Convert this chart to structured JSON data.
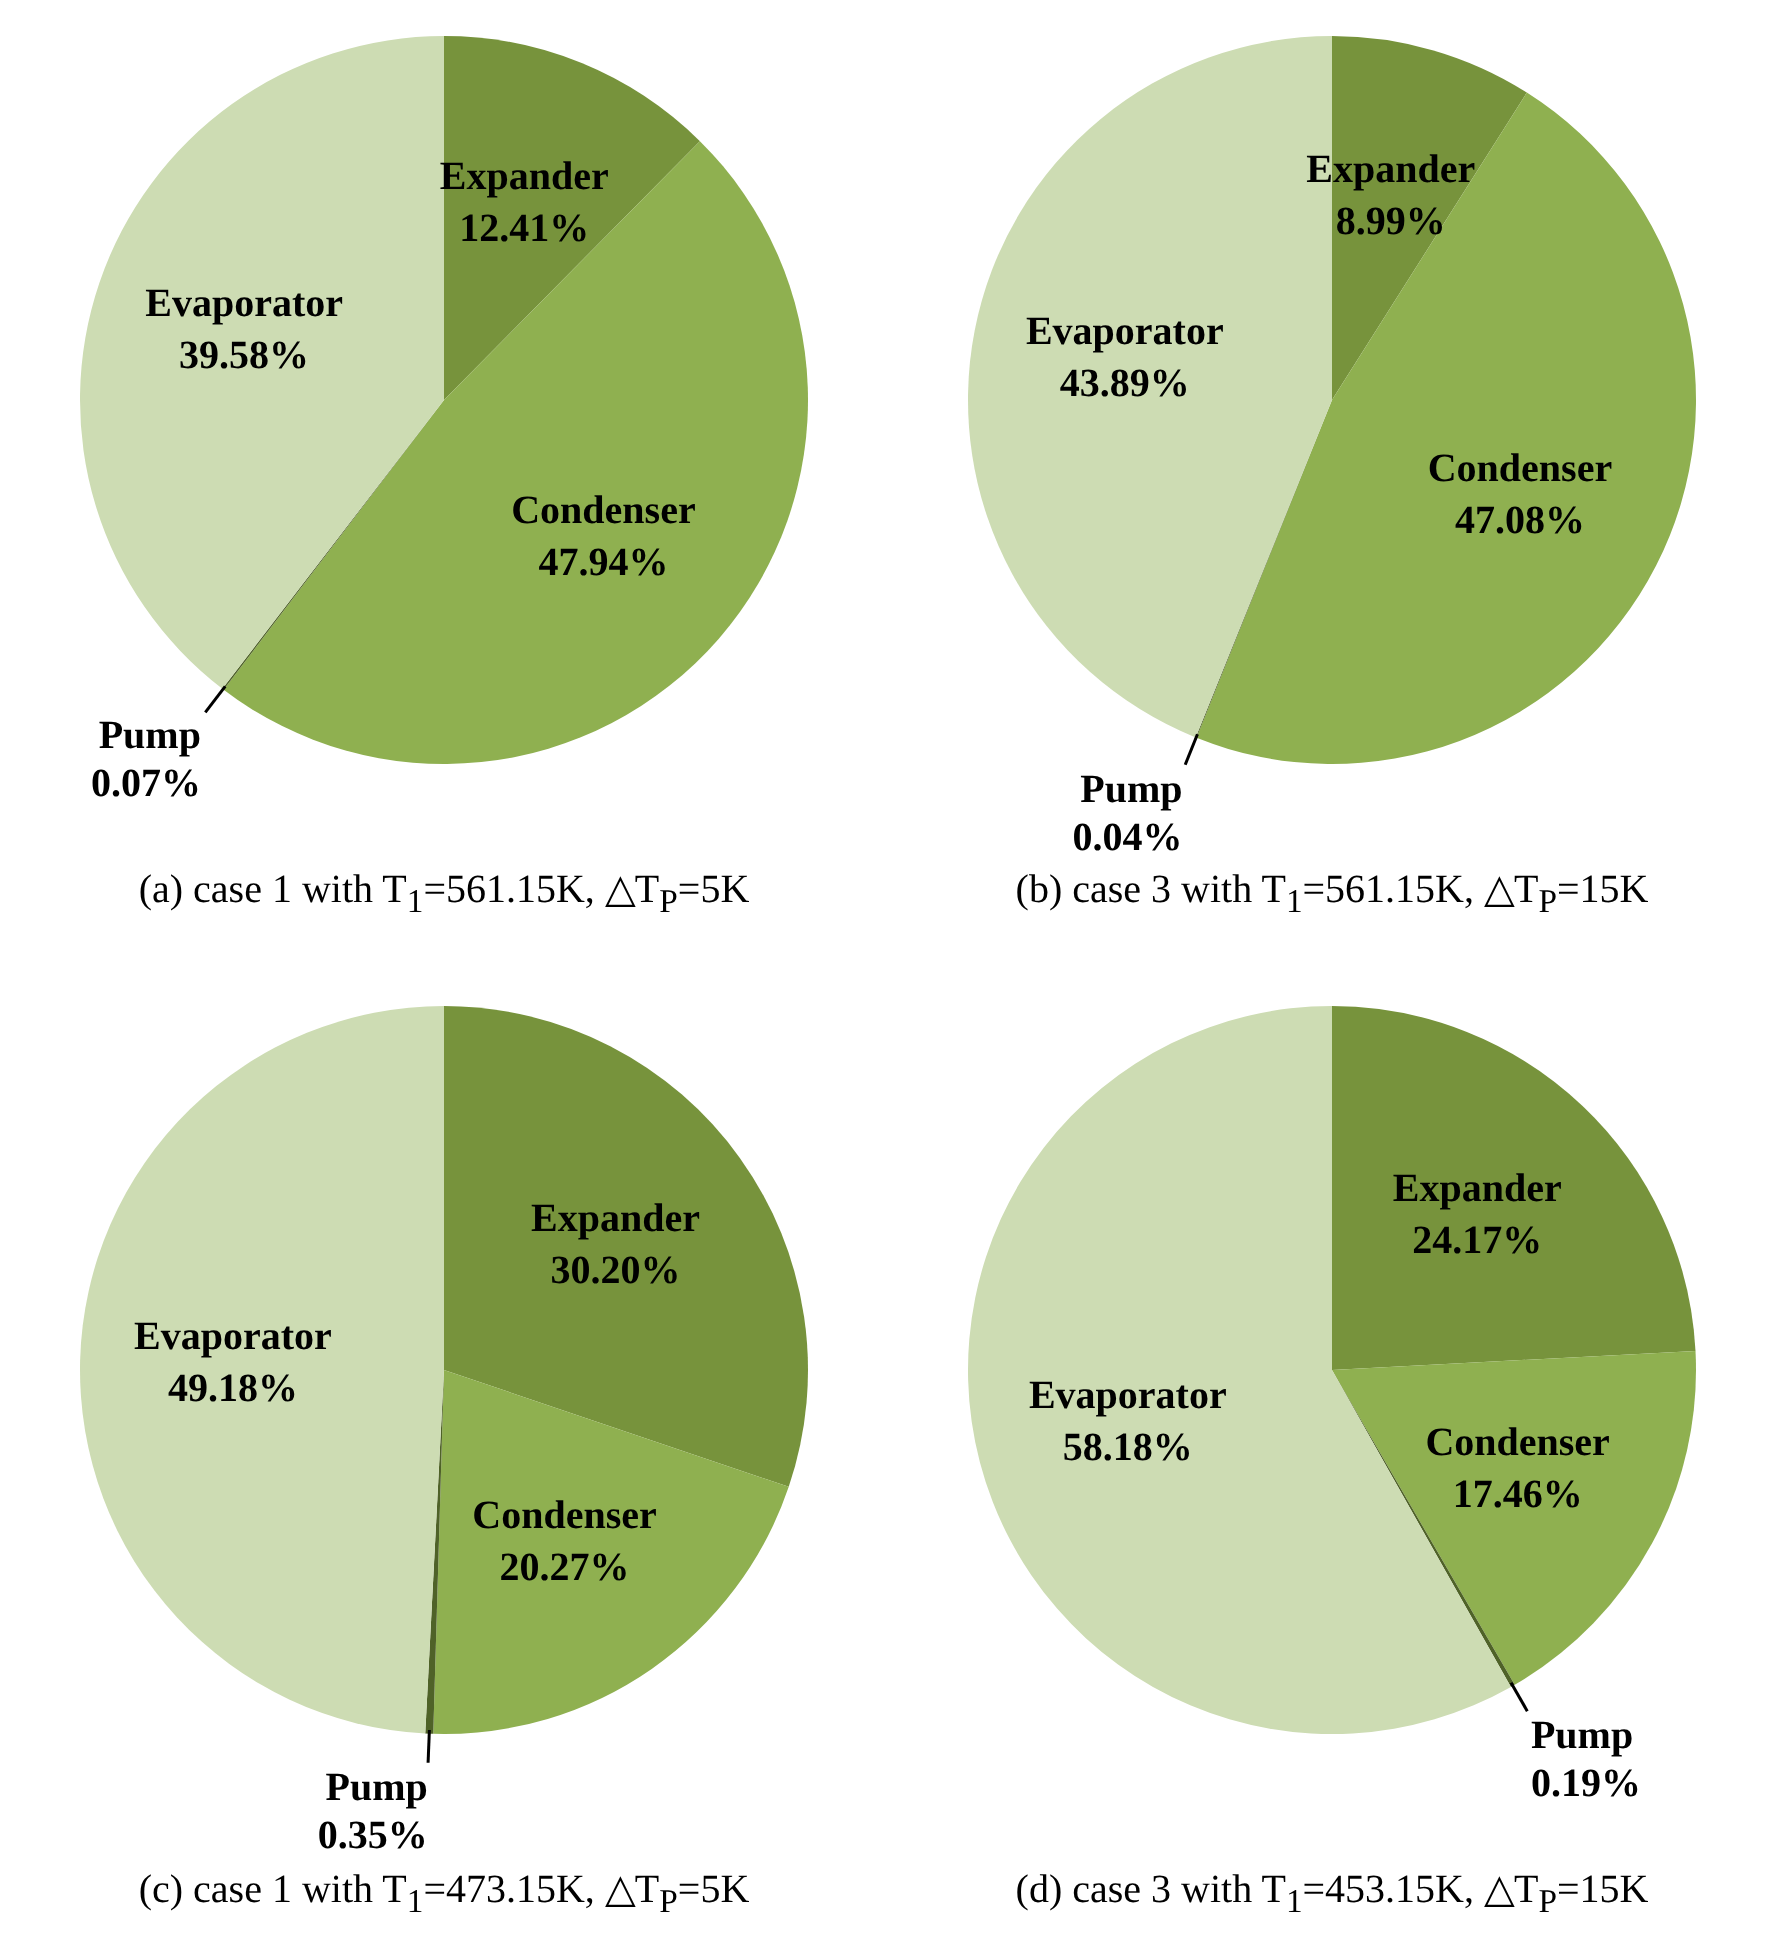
{
  "chart_data": [
    {
      "type": "pie",
      "title": "(a) case 1 with T$_{1}$=561.15K, △T$_{P}$=5K",
      "categories": [
        "Expander",
        "Condenser",
        "Pump",
        "Evaporator"
      ],
      "values": [
        12.41,
        47.94,
        0.07,
        39.58
      ],
      "value_labels": [
        "12.41%",
        "47.94%",
        "0.07%",
        "39.58%"
      ],
      "colors": [
        "#77933c",
        "#8fb050",
        "#4f6228",
        "#cddcb3"
      ],
      "legend": false
    },
    {
      "type": "pie",
      "title": "(b) case 3 with T$_{1}$=561.15K, △T$_{P}$=15K",
      "categories": [
        "Expander",
        "Condenser",
        "Pump",
        "Evaporator"
      ],
      "values": [
        8.99,
        47.08,
        0.04,
        43.89
      ],
      "value_labels": [
        "8.99%",
        "47.08%",
        "0.04%",
        "43.89%"
      ],
      "colors": [
        "#77933c",
        "#8fb050",
        "#4f6228",
        "#cddcb3"
      ],
      "legend": false
    },
    {
      "type": "pie",
      "title": "(c) case 1 with T$_{1}$=473.15K, △T$_{P}$=5K",
      "categories": [
        "Expander",
        "Condenser",
        "Pump",
        "Evaporator"
      ],
      "values": [
        30.2,
        20.27,
        0.35,
        49.18
      ],
      "value_labels": [
        "30.20%",
        "20.27%",
        "0.35%",
        "49.18%"
      ],
      "colors": [
        "#77933c",
        "#8fb050",
        "#4f6228",
        "#cddcb3"
      ],
      "legend": false
    },
    {
      "type": "pie",
      "title": "(d) case 3 with T$_{1}$=453.15K, △T$_{P}$=15K",
      "categories": [
        "Expander",
        "Condenser",
        "Pump",
        "Evaporator"
      ],
      "values": [
        24.17,
        17.46,
        0.19,
        58.18
      ],
      "value_labels": [
        "24.17%",
        "17.46%",
        "0.19%",
        "58.18%"
      ],
      "colors": [
        "#77933c",
        "#8fb050",
        "#4f6228",
        "#cddcb3"
      ],
      "legend": false
    }
  ]
}
